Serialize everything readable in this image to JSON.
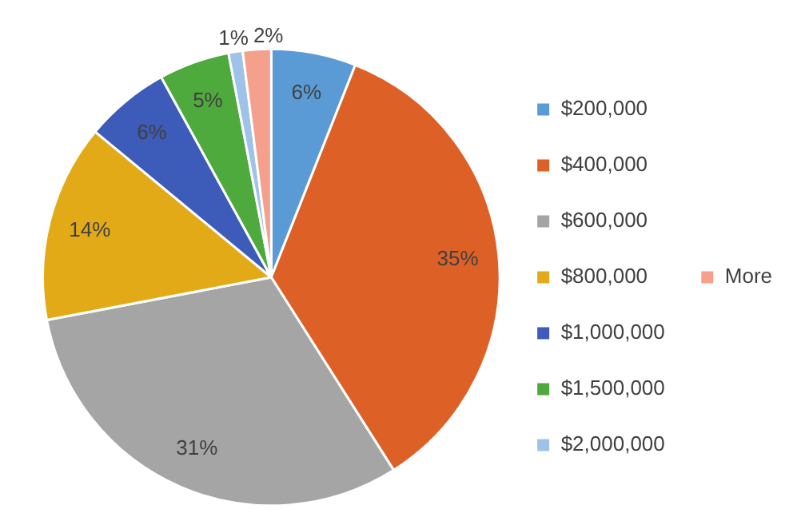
{
  "chart_data": {
    "type": "pie",
    "categories": [
      "$200,000",
      "$400,000",
      "$600,000",
      "$800,000",
      "$1,000,000",
      "$1,500,000",
      "$2,000,000",
      "More"
    ],
    "values": [
      6,
      35,
      31,
      14,
      6,
      5,
      1,
      2
    ],
    "value_labels": [
      "6%",
      "35%",
      "31%",
      "14%",
      "6%",
      "5%",
      "1%",
      "2%"
    ],
    "colors": [
      "#5b9bd5",
      "#dd6126",
      "#a5a5a5",
      "#e2aa16",
      "#3d5bb8",
      "#4eaa3c",
      "#9fc3e8",
      "#f4a08c"
    ],
    "legend": "right"
  }
}
